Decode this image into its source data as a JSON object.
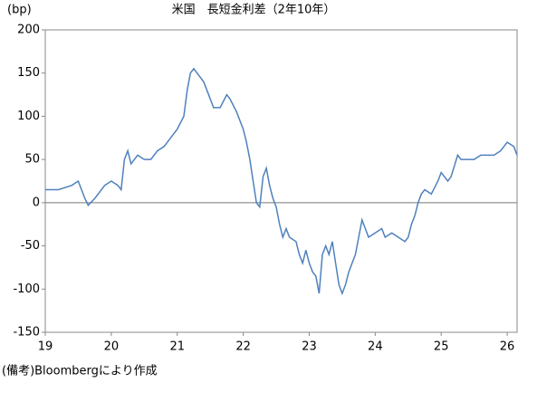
{
  "chart_data": {
    "type": "line",
    "title": "米国　長短金利差（2年10年）",
    "y_unit": "(bp)",
    "note": "(備考)Bloombergにより作成",
    "xlim": [
      19,
      26.15
    ],
    "xticks": [
      19,
      20,
      21,
      22,
      23,
      24,
      25,
      26
    ],
    "ylim": [
      -150,
      200
    ],
    "yticks": [
      -150,
      -100,
      -50,
      0,
      50,
      100,
      150,
      200
    ],
    "x": [
      19.0,
      19.2,
      19.4,
      19.5,
      19.6,
      19.65,
      19.75,
      19.9,
      20.0,
      20.1,
      20.15,
      20.2,
      20.25,
      20.3,
      20.4,
      20.5,
      20.6,
      20.7,
      20.8,
      20.9,
      21.0,
      21.1,
      21.15,
      21.2,
      21.25,
      21.3,
      21.4,
      21.5,
      21.55,
      21.65,
      21.75,
      21.8,
      21.9,
      22.0,
      22.05,
      22.1,
      22.15,
      22.2,
      22.25,
      22.3,
      22.35,
      22.4,
      22.45,
      22.5,
      22.55,
      22.6,
      22.65,
      22.7,
      22.8,
      22.85,
      22.9,
      22.95,
      23.0,
      23.05,
      23.1,
      23.15,
      23.2,
      23.25,
      23.3,
      23.35,
      23.4,
      23.45,
      23.5,
      23.55,
      23.6,
      23.65,
      23.7,
      23.75,
      23.8,
      23.85,
      23.9,
      24.0,
      24.1,
      24.15,
      24.25,
      24.35,
      24.45,
      24.5,
      24.55,
      24.6,
      24.65,
      24.7,
      24.75,
      24.85,
      24.95,
      25.0,
      25.1,
      25.15,
      25.25,
      25.3,
      25.4,
      25.5,
      25.6,
      25.7,
      25.8,
      25.9,
      26.0,
      26.1,
      26.15
    ],
    "series": [
      {
        "name": "長短金利差",
        "color": "#4f81bd",
        "values": [
          15,
          15,
          20,
          25,
          5,
          -3,
          5,
          20,
          25,
          20,
          15,
          50,
          60,
          45,
          55,
          50,
          50,
          60,
          65,
          75,
          85,
          100,
          130,
          150,
          155,
          150,
          140,
          120,
          110,
          110,
          125,
          120,
          105,
          85,
          70,
          50,
          25,
          0,
          -5,
          30,
          40,
          20,
          5,
          -5,
          -25,
          -40,
          -30,
          -40,
          -45,
          -60,
          -70,
          -55,
          -70,
          -80,
          -85,
          -105,
          -60,
          -50,
          -60,
          -45,
          -70,
          -95,
          -105,
          -95,
          -80,
          -70,
          -60,
          -40,
          -20,
          -30,
          -40,
          -35,
          -30,
          -40,
          -35,
          -40,
          -45,
          -40,
          -25,
          -15,
          0,
          10,
          15,
          10,
          25,
          35,
          25,
          30,
          55,
          50,
          50,
          50,
          55,
          55,
          55,
          60,
          70,
          65,
          55
        ]
      }
    ],
    "zero_line": true
  }
}
